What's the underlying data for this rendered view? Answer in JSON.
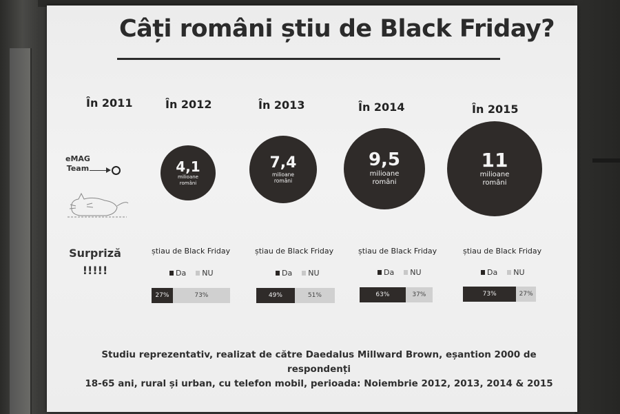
{
  "title": "Câți români știu de Black Friday?",
  "years": [
    "În 2011",
    "În 2012",
    "În 2013",
    "În 2014",
    "În 2015"
  ],
  "team": {
    "line1": "eMAG",
    "line2": "Team"
  },
  "circles": [
    {
      "value": "4,1",
      "unit1": "milioane",
      "unit2": "români"
    },
    {
      "value": "7,4",
      "unit1": "milioane",
      "unit2": "români"
    },
    {
      "value": "9,5",
      "unit1": "milioane",
      "unit2": "români"
    },
    {
      "value": "11",
      "unit1": "milioane",
      "unit2": "români"
    }
  ],
  "surpriza": {
    "line1": "Surpriză",
    "line2": "!!!!!"
  },
  "question": "știau de Black Friday",
  "legend": {
    "yes": "Da",
    "no": "NU"
  },
  "colors": {
    "yes": "#2f2b29",
    "no": "#d0d0d0"
  },
  "bars": [
    {
      "yes": 27,
      "no": 73,
      "yes_label": "27%",
      "no_label": "73%"
    },
    {
      "yes": 49,
      "no": 51,
      "yes_label": "49%",
      "no_label": "51%"
    },
    {
      "yes": 63,
      "no": 37,
      "yes_label": "63%",
      "no_label": "37%"
    },
    {
      "yes": 73,
      "no": 27,
      "yes_label": "73%",
      "no_label": "27%"
    }
  ],
  "footer": {
    "line1": "Studiu reprezentativ, realizat de către Daedalus Millward Brown, eșantion 2000 de respondenți",
    "line2": "18-65 ani, rural și urban, cu telefon mobil, perioada:  Noiembrie 2012, 2013, 2014 & 2015"
  }
}
